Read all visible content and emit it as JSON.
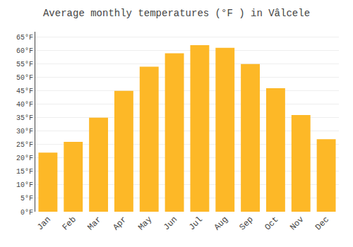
{
  "chart_data": {
    "type": "bar",
    "title": "Average monthly temperatures (°F ) in Vâlcele",
    "categories": [
      "Jan",
      "Feb",
      "Mar",
      "Apr",
      "May",
      "Jun",
      "Jul",
      "Aug",
      "Sep",
      "Oct",
      "Nov",
      "Dec"
    ],
    "values": [
      22,
      26,
      35,
      45,
      54,
      59,
      62,
      61,
      55,
      46,
      36,
      27
    ],
    "color": "#FDB827",
    "ylim": [
      0,
      67
    ],
    "yticks": [
      {
        "value": 0,
        "label": "0°F"
      },
      {
        "value": 5,
        "label": "5°F"
      },
      {
        "value": 10,
        "label": "10°F"
      },
      {
        "value": 15,
        "label": "15°F"
      },
      {
        "value": 20,
        "label": "20°F"
      },
      {
        "value": 25,
        "label": "25°F"
      },
      {
        "value": 30,
        "label": "30°F"
      },
      {
        "value": 35,
        "label": "35°F"
      },
      {
        "value": 40,
        "label": "40°F"
      },
      {
        "value": 45,
        "label": "45°F"
      },
      {
        "value": 50,
        "label": "50°F"
      },
      {
        "value": 55,
        "label": "55°F"
      },
      {
        "value": 60,
        "label": "60°F"
      },
      {
        "value": 65,
        "label": "65°F"
      }
    ],
    "grid": true
  }
}
